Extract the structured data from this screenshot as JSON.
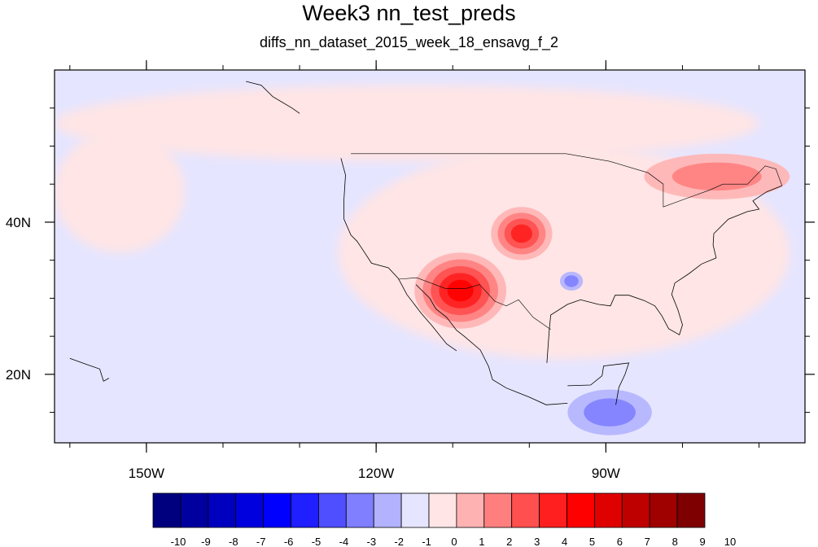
{
  "chart_data": {
    "type": "heatmap",
    "title": "Week3 nn_test_preds",
    "subtitle": "diffs_nn_dataset_2015_week_18_ensavg_f_2",
    "x_range": [
      -162,
      -64
    ],
    "y_range": [
      11,
      60
    ],
    "x_ticks": [
      {
        "value": -150,
        "label": "150W"
      },
      {
        "value": -120,
        "label": "120W"
      },
      {
        "value": -90,
        "label": "90W"
      }
    ],
    "y_ticks": [
      {
        "value": 40,
        "label": "40N"
      },
      {
        "value": 20,
        "label": "20N"
      }
    ],
    "colorbar": {
      "levels": [
        -10,
        -9,
        -8,
        -7,
        -6,
        -5,
        -4,
        -3,
        -2,
        -1,
        0,
        1,
        2,
        3,
        4,
        5,
        6,
        7,
        8,
        9,
        10
      ],
      "labels": [
        "-10",
        "-9",
        "-8",
        "-7",
        "-6",
        "-5",
        "-4",
        "-3",
        "-2",
        "-1",
        "0",
        "1",
        "2",
        "3",
        "4",
        "5",
        "6",
        "7",
        "8",
        "9",
        "10"
      ],
      "colors": [
        "#00007f",
        "#00009f",
        "#0000bf",
        "#0000df",
        "#0000ff",
        "#1f1fff",
        "#4f4fff",
        "#7f7fff",
        "#b2b2ff",
        "#e5e5ff",
        "#ffe5e5",
        "#ffb2b2",
        "#ff7f7f",
        "#ff4f4f",
        "#ff1f1f",
        "#ff0000",
        "#df0000",
        "#bf0000",
        "#9f0000",
        "#7f0000"
      ]
    },
    "background_levels": {
      "ocean_default": "#e5e5ff",
      "slight_positive": "#ffe5e5"
    },
    "features": [
      {
        "kind": "slight_positive",
        "lon": [
          -162,
          -145
        ],
        "lat": [
          36,
          52
        ]
      },
      {
        "kind": "slight_positive",
        "lon": [
          -162,
          -70
        ],
        "lat": [
          48,
          58
        ]
      },
      {
        "kind": "slight_positive",
        "lon": [
          -125,
          -66
        ],
        "lat": [
          22,
          50
        ]
      },
      {
        "kind": "warm_southwest",
        "lon": [
          -115,
          -103
        ],
        "lat": [
          26,
          36
        ],
        "value": 5
      },
      {
        "kind": "warm_plains",
        "lon": [
          -105,
          -97
        ],
        "lat": [
          35,
          42
        ],
        "value": 4
      },
      {
        "kind": "warm_northeast",
        "lon": [
          -85,
          -66
        ],
        "lat": [
          43,
          49
        ],
        "value": 2
      },
      {
        "kind": "cool_gulf",
        "lon": [
          -96,
          -93
        ],
        "lat": [
          31,
          33.5
        ],
        "value": -2
      },
      {
        "kind": "cool_central_america",
        "lon": [
          -95,
          -84
        ],
        "lat": [
          12,
          18
        ],
        "value": -2
      }
    ]
  }
}
